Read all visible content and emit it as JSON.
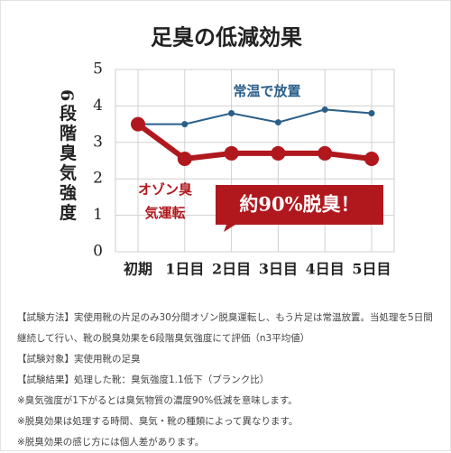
{
  "chart_data": {
    "type": "line",
    "title": "足臭の低減効果",
    "y_label": "6段階臭気強度",
    "categories": [
      "初期",
      "1日目",
      "2日目",
      "3日目",
      "4日目",
      "5日目"
    ],
    "series": [
      {
        "name": "常温で放置",
        "color": "#2a5f8a",
        "values": [
          3.5,
          3.5,
          3.8,
          3.55,
          3.9,
          3.8
        ]
      },
      {
        "name": "オゾン臭気運転",
        "color": "#b0181e",
        "values": [
          3.5,
          2.55,
          2.7,
          2.7,
          2.7,
          2.55
        ]
      }
    ],
    "ylim": [
      0,
      5
    ],
    "yticks": [
      0,
      1,
      2,
      3,
      4,
      5
    ],
    "grid": true,
    "annotation": "約90%脱臭！"
  },
  "notes": [
    "【試験方法】実使用靴の片足のみ30分間オゾン脱臭運転し、もう片足は常温放置。当処理を5日間継続して行い、靴の脱臭効果を6段階臭気強度にて評価（n3平均値）",
    "【試験対象】実使用靴の足臭",
    "【試験結果】処理した靴：臭気強度1.1低下（ブランク比）",
    "※臭気強度が1下がるとは臭気物質の濃度90%低減を意味します。",
    "※脱臭効果は処理する時間、臭気・靴の種類によって異なります。",
    "※脱臭効果の感じ方には個人差があります。"
  ]
}
